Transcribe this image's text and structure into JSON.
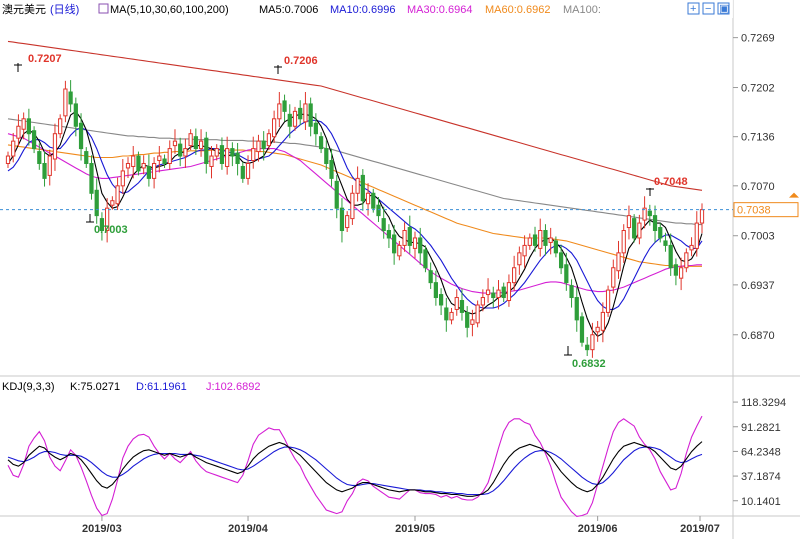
{
  "header": {
    "symbol": "澳元美元",
    "period": "(日线)",
    "ma_label": "MA(5,10,30,60,100,200)",
    "ma_values": [
      {
        "name": "MA5",
        "text": "MA5:0.7006",
        "color": "#000000"
      },
      {
        "name": "MA10",
        "text": "MA10:0.6996",
        "color": "#1a1ad6"
      },
      {
        "name": "MA30",
        "text": "MA30:0.6964",
        "color": "#d41fd4"
      },
      {
        "name": "MA60",
        "text": "MA60:0.6962",
        "color": "#f08a1c"
      },
      {
        "name": "MA100",
        "text": "MA100:",
        "color": "#888888"
      }
    ]
  },
  "toolbar": {
    "zoom_in": "+",
    "zoom_out": "−",
    "settings": "▣",
    "close": "✕"
  },
  "price_axis": {
    "ticks": [
      "0.7269",
      "0.7202",
      "0.7136",
      "0.7070",
      "0.7003",
      "0.6937",
      "0.6870"
    ],
    "current": "0.7038"
  },
  "annotations": [
    {
      "text": "0.7207",
      "color": "#e0352b"
    },
    {
      "text": "0.7206",
      "color": "#e0352b"
    },
    {
      "text": "0.7003",
      "color": "#2e9e3a"
    },
    {
      "text": "0.7048",
      "color": "#e0352b"
    },
    {
      "text": "0.6832",
      "color": "#2e9e3a"
    }
  ],
  "kdj": {
    "label": "KDJ(9,3,3)",
    "k": "K:75.0271",
    "d": "D:61.1961",
    "j": "J:102.6892",
    "ticks": [
      "118.3294",
      "91.2821",
      "64.2348",
      "37.1874",
      "10.1401"
    ]
  },
  "x_axis": {
    "ticks": [
      "2019/03",
      "2019/04",
      "2019/05",
      "2019/06",
      "2019/07"
    ]
  },
  "colors": {
    "up": "#e0352b",
    "down": "#2e9e3a",
    "ma5": "#000000",
    "ma10": "#1a1ad6",
    "ma30": "#d41fd4",
    "ma60": "#f08a1c",
    "ma100": "#888888",
    "ma200": "#c8332a"
  },
  "chart_data": {
    "type": "candlestick",
    "ylim": [
      0.682,
      0.729
    ],
    "close": [
      0.711,
      0.713,
      0.715,
      0.716,
      0.714,
      0.712,
      0.71,
      0.708,
      0.711,
      0.714,
      0.716,
      0.72,
      0.718,
      0.715,
      0.712,
      0.71,
      0.706,
      0.703,
      0.701,
      0.704,
      0.705,
      0.707,
      0.709,
      0.71,
      0.711,
      0.709,
      0.71,
      0.708,
      0.71,
      0.711,
      0.71,
      0.712,
      0.713,
      0.711,
      0.712,
      0.714,
      0.712,
      0.713,
      0.71,
      0.711,
      0.712,
      0.71,
      0.712,
      0.711,
      0.71,
      0.708,
      0.71,
      0.712,
      0.713,
      0.712,
      0.714,
      0.716,
      0.718,
      0.717,
      0.715,
      0.717,
      0.716,
      0.718,
      0.715,
      0.714,
      0.712,
      0.71,
      0.708,
      0.704,
      0.701,
      0.703,
      0.706,
      0.708,
      0.705,
      0.706,
      0.704,
      0.703,
      0.701,
      0.7,
      0.698,
      0.699,
      0.701,
      0.699,
      0.7,
      0.698,
      0.696,
      0.694,
      0.692,
      0.691,
      0.689,
      0.69,
      0.692,
      0.69,
      0.688,
      0.689,
      0.691,
      0.692,
      0.693,
      0.692,
      0.693,
      0.692,
      0.694,
      0.696,
      0.698,
      0.699,
      0.7,
      0.699,
      0.701,
      0.699,
      0.7,
      0.698,
      0.696,
      0.694,
      0.692,
      0.689,
      0.686,
      0.685,
      0.687,
      0.688,
      0.69,
      0.693,
      0.696,
      0.698,
      0.701,
      0.703,
      0.7,
      0.702,
      0.704,
      0.703,
      0.701,
      0.7,
      0.699,
      0.696,
      0.695,
      0.696,
      0.698,
      0.699,
      0.702,
      0.7038
    ],
    "ma5": [
      0.71,
      0.711,
      0.7125,
      0.714,
      0.7145,
      0.714,
      0.713,
      0.7115,
      0.711,
      0.7115,
      0.7125,
      0.7145,
      0.7165,
      0.717,
      0.716,
      0.7145,
      0.712,
      0.709,
      0.706,
      0.7048,
      0.704,
      0.7042,
      0.7055,
      0.707,
      0.7085,
      0.7092,
      0.7098,
      0.7096,
      0.7094,
      0.7096,
      0.7098,
      0.7102,
      0.711,
      0.7114,
      0.7116,
      0.7122,
      0.7124,
      0.7124,
      0.7122,
      0.712,
      0.7116,
      0.7112,
      0.711,
      0.7112,
      0.711,
      0.7102,
      0.71,
      0.7102,
      0.7106,
      0.711,
      0.7122,
      0.7134,
      0.7146,
      0.7156,
      0.716,
      0.7164,
      0.7166,
      0.7166,
      0.7164,
      0.716,
      0.715,
      0.7134,
      0.7114,
      0.7088,
      0.707,
      0.7052,
      0.7044,
      0.7044,
      0.7046,
      0.7056,
      0.7058,
      0.7052,
      0.7038,
      0.7028,
      0.7012,
      0.7002,
      0.6998,
      0.6994,
      0.6994,
      0.6992,
      0.6988,
      0.6974,
      0.696,
      0.6944,
      0.6924,
      0.6912,
      0.6908,
      0.6904,
      0.69,
      0.6898,
      0.69,
      0.6904,
      0.691,
      0.6914,
      0.692,
      0.6924,
      0.6928,
      0.6934,
      0.6946,
      0.6958,
      0.6974,
      0.6986,
      0.6994,
      0.6998,
      0.7,
      0.6994,
      0.6986,
      0.6974,
      0.696,
      0.6938,
      0.6914,
      0.6892,
      0.6876,
      0.6868,
      0.6872,
      0.6886,
      0.6908,
      0.6934,
      0.6962,
      0.6986,
      0.6996,
      0.7008,
      0.7016,
      0.7024,
      0.702,
      0.702,
      0.7014,
      0.6998,
      0.6982,
      0.697,
      0.6968,
      0.6972,
      0.6984,
      0.7006
    ],
    "ma10": [
      0.709,
      0.7095,
      0.7105,
      0.7118,
      0.7128,
      0.7132,
      0.7132,
      0.7128,
      0.7122,
      0.712,
      0.712,
      0.7128,
      0.7138,
      0.7145,
      0.7148,
      0.7145,
      0.7135,
      0.712,
      0.7102,
      0.7085,
      0.7072,
      0.7064,
      0.706,
      0.7062,
      0.7068,
      0.7074,
      0.7082,
      0.709,
      0.7095,
      0.7098,
      0.71,
      0.7102,
      0.7104,
      0.7106,
      0.7108,
      0.7112,
      0.7116,
      0.7118,
      0.7118,
      0.712,
      0.712,
      0.7118,
      0.7116,
      0.7114,
      0.7112,
      0.7108,
      0.7104,
      0.7104,
      0.7106,
      0.7108,
      0.711,
      0.7116,
      0.7124,
      0.7132,
      0.714,
      0.7146,
      0.7152,
      0.7156,
      0.7158,
      0.7158,
      0.7156,
      0.715,
      0.714,
      0.7126,
      0.711,
      0.7094,
      0.7082,
      0.7074,
      0.7068,
      0.7064,
      0.7058,
      0.7052,
      0.7046,
      0.704,
      0.7034,
      0.7028,
      0.7022,
      0.7016,
      0.7012,
      0.7006,
      0.6998,
      0.699,
      0.698,
      0.697,
      0.6958,
      0.6946,
      0.6936,
      0.6926,
      0.6918,
      0.6912,
      0.6908,
      0.6906,
      0.6906,
      0.6906,
      0.6908,
      0.6912,
      0.6918,
      0.6924,
      0.6932,
      0.694,
      0.695,
      0.696,
      0.697,
      0.6978,
      0.6986,
      0.699,
      0.699,
      0.6986,
      0.698,
      0.697,
      0.6956,
      0.6942,
      0.6928,
      0.6916,
      0.6908,
      0.6904,
      0.6904,
      0.6908,
      0.6918,
      0.6932,
      0.6946,
      0.696,
      0.6974,
      0.6986,
      0.6994,
      0.7,
      0.7004,
      0.7004,
      0.7,
      0.6996,
      0.699,
      0.6986,
      0.6986,
      0.6996
    ],
    "ma30": [
      0.714,
      0.7138,
      0.7136,
      0.7134,
      0.713,
      0.7126,
      0.7122,
      0.7118,
      0.7114,
      0.711,
      0.7106,
      0.7102,
      0.7098,
      0.7094,
      0.709,
      0.7086,
      0.7083,
      0.7081,
      0.708,
      0.708,
      0.7081,
      0.7082,
      0.7083,
      0.7084,
      0.7085,
      0.7086,
      0.7087,
      0.7088,
      0.7089,
      0.709,
      0.7091,
      0.7092,
      0.7093,
      0.7094,
      0.7095,
      0.7096,
      0.7098,
      0.71,
      0.7102,
      0.7104,
      0.7106,
      0.7108,
      0.711,
      0.7112,
      0.7114,
      0.7116,
      0.7118,
      0.7119,
      0.712,
      0.712,
      0.712,
      0.712,
      0.7118,
      0.7116,
      0.7112,
      0.7108,
      0.7104,
      0.7098,
      0.7092,
      0.7086,
      0.708,
      0.7074,
      0.7068,
      0.7062,
      0.7056,
      0.705,
      0.7044,
      0.7038,
      0.7032,
      0.7026,
      0.702,
      0.7014,
      0.7008,
      0.7002,
      0.6996,
      0.699,
      0.6984,
      0.6978,
      0.6972,
      0.6966,
      0.696,
      0.6955,
      0.695,
      0.6946,
      0.6942,
      0.6938,
      0.6935,
      0.6932,
      0.693,
      0.6928,
      0.6927,
      0.6926,
      0.6926,
      0.6926,
      0.6926,
      0.6927,
      0.6928,
      0.6929,
      0.693,
      0.6932,
      0.6934,
      0.6936,
      0.6938,
      0.694,
      0.6941,
      0.6941,
      0.694,
      0.6938,
      0.6936,
      0.6934,
      0.6932,
      0.693,
      0.6929,
      0.6928,
      0.6928,
      0.6929,
      0.693,
      0.6932,
      0.6934,
      0.6937,
      0.694,
      0.6943,
      0.6946,
      0.6949,
      0.6952,
      0.6955,
      0.6958,
      0.696,
      0.6961,
      0.6962,
      0.6963,
      0.6963,
      0.6964,
      0.6964
    ],
    "ma60": [
      0.7125,
      0.7124,
      0.7123,
      0.7122,
      0.7121,
      0.712,
      0.7119,
      0.7118,
      0.7117,
      0.7116,
      0.7115,
      0.7114,
      0.7113,
      0.7112,
      0.7111,
      0.711,
      0.7109,
      0.7108,
      0.7108,
      0.7108,
      0.7108,
      0.7109,
      0.711,
      0.711,
      0.7111,
      0.7112,
      0.7112,
      0.7113,
      0.7114,
      0.7114,
      0.7115,
      0.7115,
      0.7116,
      0.7116,
      0.7116,
      0.7117,
      0.7117,
      0.7117,
      0.7117,
      0.7118,
      0.7118,
      0.7118,
      0.7118,
      0.7118,
      0.7118,
      0.7118,
      0.7117,
      0.7117,
      0.7116,
      0.7116,
      0.7115,
      0.7114,
      0.7113,
      0.7112,
      0.711,
      0.7108,
      0.7106,
      0.7104,
      0.7102,
      0.71,
      0.7098,
      0.7095,
      0.7092,
      0.7089,
      0.7086,
      0.7083,
      0.708,
      0.7077,
      0.7074,
      0.7071,
      0.7068,
      0.7065,
      0.7062,
      0.7059,
      0.7056,
      0.7053,
      0.705,
      0.7047,
      0.7044,
      0.7041,
      0.7038,
      0.7035,
      0.7032,
      0.7029,
      0.7026,
      0.7023,
      0.702,
      0.7018,
      0.7016,
      0.7014,
      0.7012,
      0.701,
      0.7008,
      0.7006,
      0.7005,
      0.7004,
      0.7003,
      0.7002,
      0.7001,
      0.7,
      0.7,
      0.7,
      0.7,
      0.7,
      0.6999,
      0.6998,
      0.6997,
      0.6996,
      0.6994,
      0.6992,
      0.699,
      0.6988,
      0.6986,
      0.6984,
      0.6982,
      0.698,
      0.6978,
      0.6976,
      0.6974,
      0.6972,
      0.697,
      0.6968,
      0.6967,
      0.6966,
      0.6965,
      0.6964,
      0.6963,
      0.6963,
      0.6962,
      0.6962,
      0.6962,
      0.6962,
      0.6962,
      0.6962
    ],
    "ma100": [
      0.716,
      0.7159,
      0.7158,
      0.7157,
      0.7156,
      0.7155,
      0.7154,
      0.7153,
      0.7152,
      0.7151,
      0.715,
      0.7149,
      0.7148,
      0.7147,
      0.7146,
      0.7145,
      0.7144,
      0.7143,
      0.7142,
      0.7141,
      0.714,
      0.7139,
      0.7138,
      0.7137,
      0.7137,
      0.7136,
      0.7136,
      0.7135,
      0.7135,
      0.7134,
      0.7134,
      0.7134,
      0.7133,
      0.7133,
      0.7133,
      0.7133,
      0.7132,
      0.7132,
      0.7132,
      0.7132,
      0.7132,
      0.7131,
      0.7131,
      0.7131,
      0.7131,
      0.7131,
      0.713,
      0.713,
      0.713,
      0.713,
      0.7129,
      0.7129,
      0.7128,
      0.7128,
      0.7127,
      0.7127,
      0.7126,
      0.7125,
      0.7124,
      0.7123,
      0.7122,
      0.712,
      0.7119,
      0.7117,
      0.7115,
      0.7113,
      0.7111,
      0.7109,
      0.7107,
      0.7105,
      0.7103,
      0.7101,
      0.7099,
      0.7097,
      0.7095,
      0.7093,
      0.7091,
      0.7089,
      0.7087,
      0.7085,
      0.7083,
      0.7081,
      0.7079,
      0.7077,
      0.7075,
      0.7073,
      0.7071,
      0.7069,
      0.7067,
      0.7065,
      0.7063,
      0.7061,
      0.7059,
      0.7057,
      0.7055,
      0.7053,
      0.7052,
      0.7051,
      0.705,
      0.7049,
      0.7048,
      0.7047,
      0.7046,
      0.7045,
      0.7044,
      0.7043,
      0.7042,
      0.7041,
      0.704,
      0.7039,
      0.7038,
      0.7037,
      0.7036,
      0.7035,
      0.7034,
      0.7033,
      0.7032,
      0.7031,
      0.703,
      0.7029,
      0.7028,
      0.7027,
      0.7026,
      0.7025,
      0.7024,
      0.7023,
      0.7022,
      0.7021,
      0.702,
      0.702,
      0.7019,
      0.7019,
      0.7018,
      0.7018
    ],
    "ma200": [
      0.7264,
      0.7263,
      0.7262,
      0.7261,
      0.726,
      0.7259,
      0.7258,
      0.7257,
      0.7256,
      0.7255,
      0.7254,
      0.7253,
      0.7252,
      0.7251,
      0.725,
      0.7249,
      0.7248,
      0.7247,
      0.7246,
      0.7245,
      0.7244,
      0.7243,
      0.7242,
      0.7241,
      0.724,
      0.7239,
      0.7238,
      0.7237,
      0.7236,
      0.7235,
      0.7234,
      0.7233,
      0.7232,
      0.7231,
      0.723,
      0.7229,
      0.7228,
      0.7227,
      0.7226,
      0.7225,
      0.7224,
      0.7223,
      0.7222,
      0.7221,
      0.722,
      0.7219,
      0.7218,
      0.7217,
      0.7216,
      0.7215,
      0.7214,
      0.7213,
      0.7212,
      0.7211,
      0.721,
      0.7209,
      0.7208,
      0.7207,
      0.7206,
      0.7205,
      0.7204,
      0.7202,
      0.72,
      0.7198,
      0.7196,
      0.7194,
      0.7192,
      0.719,
      0.7188,
      0.7186,
      0.7184,
      0.7182,
      0.718,
      0.7178,
      0.7176,
      0.7174,
      0.7172,
      0.717,
      0.7168,
      0.7166,
      0.7164,
      0.7162,
      0.716,
      0.7158,
      0.7156,
      0.7154,
      0.7152,
      0.715,
      0.7148,
      0.7146,
      0.7144,
      0.7142,
      0.714,
      0.7138,
      0.7136,
      0.7134,
      0.7132,
      0.713,
      0.7128,
      0.7126,
      0.7124,
      0.7122,
      0.712,
      0.7118,
      0.7116,
      0.7114,
      0.7112,
      0.711,
      0.7108,
      0.7106,
      0.7104,
      0.7102,
      0.71,
      0.7098,
      0.7096,
      0.7094,
      0.7092,
      0.709,
      0.7088,
      0.7086,
      0.7084,
      0.7082,
      0.708,
      0.7078,
      0.7076,
      0.7074,
      0.7072,
      0.707,
      0.7069,
      0.7068,
      0.7067,
      0.7066,
      0.7065,
      0.7064
    ],
    "kdj_ylim": [
      0,
      125
    ],
    "kdj_k": [
      55,
      50,
      48,
      52,
      60,
      65,
      70,
      68,
      62,
      58,
      55,
      58,
      62,
      60,
      55,
      48,
      40,
      32,
      26,
      24,
      28,
      35,
      45,
      52,
      58,
      62,
      65,
      66,
      64,
      62,
      60,
      62,
      60,
      58,
      60,
      62,
      58,
      55,
      52,
      50,
      48,
      46,
      44,
      42,
      40,
      42,
      48,
      56,
      62,
      66,
      70,
      72,
      74,
      72,
      68,
      64,
      60,
      54,
      48,
      42,
      36,
      30,
      26,
      22,
      20,
      22,
      24,
      28,
      30,
      30,
      28,
      26,
      24,
      22,
      21,
      20,
      21,
      22,
      22,
      21,
      20,
      20,
      19,
      18,
      18,
      17,
      17,
      16,
      15,
      15,
      16,
      18,
      22,
      30,
      40,
      50,
      58,
      64,
      68,
      70,
      72,
      70,
      68,
      64,
      58,
      50,
      42,
      36,
      30,
      25,
      22,
      20,
      22,
      28,
      36,
      46,
      56,
      64,
      70,
      72,
      74,
      72,
      70,
      68,
      64,
      58,
      52,
      46,
      44,
      48,
      56,
      64,
      70,
      75
    ],
    "kdj_d": [
      58,
      56,
      54,
      53,
      55,
      58,
      62,
      64,
      64,
      63,
      61,
      60,
      60,
      60,
      59,
      56,
      52,
      47,
      42,
      38,
      36,
      36,
      39,
      43,
      48,
      52,
      56,
      59,
      61,
      62,
      62,
      62,
      62,
      61,
      61,
      61,
      60,
      59,
      57,
      55,
      53,
      51,
      49,
      47,
      45,
      44,
      45,
      48,
      52,
      56,
      60,
      64,
      67,
      69,
      69,
      68,
      66,
      63,
      59,
      55,
      50,
      45,
      40,
      35,
      31,
      28,
      27,
      27,
      28,
      29,
      29,
      28,
      27,
      26,
      25,
      24,
      23,
      22,
      22,
      22,
      21,
      21,
      20,
      20,
      19,
      19,
      18,
      18,
      17,
      17,
      17,
      17,
      18,
      21,
      26,
      32,
      39,
      46,
      52,
      57,
      61,
      64,
      65,
      65,
      63,
      60,
      56,
      51,
      46,
      41,
      36,
      32,
      29,
      28,
      30,
      35,
      41,
      48,
      55,
      60,
      65,
      68,
      69,
      69,
      68,
      66,
      62,
      58,
      54,
      52,
      53,
      56,
      59,
      61
    ],
    "kdj_j": [
      49,
      38,
      36,
      50,
      70,
      79,
      86,
      76,
      58,
      48,
      43,
      54,
      66,
      60,
      47,
      32,
      16,
      2,
      -6,
      -4,
      12,
      33,
      57,
      70,
      78,
      82,
      83,
      80,
      70,
      62,
      56,
      62,
      56,
      52,
      58,
      64,
      54,
      47,
      42,
      40,
      38,
      36,
      34,
      32,
      30,
      38,
      54,
      72,
      82,
      86,
      90,
      88,
      88,
      78,
      66,
      56,
      48,
      36,
      26,
      16,
      8,
      0,
      -2,
      -4,
      -2,
      10,
      18,
      30,
      34,
      32,
      26,
      22,
      18,
      14,
      13,
      12,
      17,
      22,
      22,
      19,
      18,
      18,
      17,
      14,
      16,
      13,
      15,
      12,
      11,
      11,
      14,
      20,
      30,
      48,
      68,
      86,
      96,
      100,
      100,
      96,
      94,
      82,
      74,
      62,
      48,
      30,
      14,
      6,
      -2,
      -7,
      -6,
      -4,
      8,
      28,
      48,
      68,
      86,
      96,
      100,
      96,
      92,
      80,
      72,
      66,
      56,
      42,
      32,
      22,
      24,
      40,
      62,
      80,
      92,
      103
    ]
  }
}
